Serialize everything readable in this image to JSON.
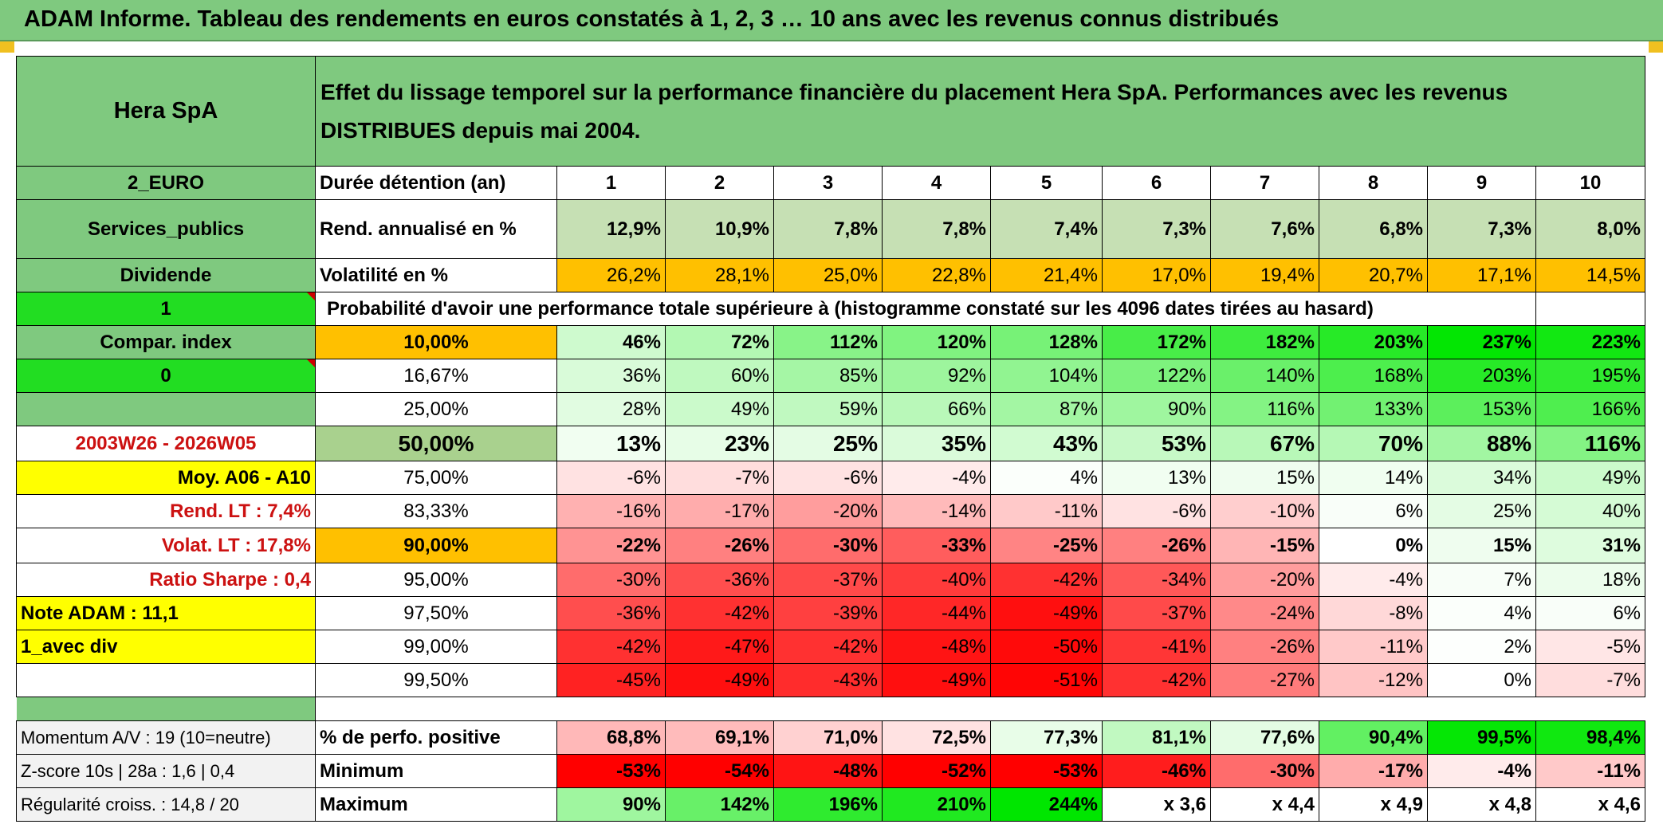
{
  "title": "ADAM Informe. Tableau des rendements en euros constatés à 1, 2, 3 … 10 ans avec les revenus connus distribués",
  "company": "Hera SpA",
  "description": "Effet du lissage temporel sur la performance financière du placement Hera SpA. Performances avec les revenus DISTRIBUES depuis mai 2004.",
  "left": {
    "currency": "2_EURO",
    "sector": "Services_publics",
    "dividend": "Dividende",
    "flag_one": "1",
    "compar_index": "Compar. index",
    "flag_zero": "0",
    "blank": "",
    "period": "2003W26 - 2026W05",
    "moy": "Moy. A06 - A10",
    "rend_lt": "Rend. LT :   7,4%",
    "volat_lt": "Volat. LT :   17,8%",
    "sharpe": "Ratio Sharpe :   0,4",
    "note": "Note ADAM : 11,1",
    "avec_div": "1_avec div",
    "momentum": "Momentum A/V : 19 (10=neutre)",
    "zscore": "Z-score 10s | 28a : 1,6 | 0,4",
    "regularite": "Régularité croiss. : 14,8 / 20"
  },
  "labels": {
    "duree": "Durée détention (an)",
    "rend": "Rend. annualisé en %",
    "volat": "Volatilité en %",
    "proba": "Probabilité d'avoir une performance totale supérieure à (histogramme constaté sur les 4096 dates tirées au hasard)",
    "perf_pos": "% de perfo. positive",
    "minimum": "Minimum",
    "maximum": "Maximum"
  },
  "years": [
    "1",
    "2",
    "3",
    "4",
    "5",
    "6",
    "7",
    "8",
    "9",
    "10"
  ],
  "rend": [
    "12,9%",
    "10,9%",
    "7,8%",
    "7,8%",
    "7,4%",
    "7,3%",
    "7,6%",
    "6,8%",
    "7,3%",
    "8,0%"
  ],
  "volat": [
    "26,2%",
    "28,1%",
    "25,0%",
    "22,8%",
    "21,4%",
    "17,0%",
    "19,4%",
    "20,7%",
    "17,1%",
    "14,5%"
  ],
  "quantiles": [
    {
      "label": "10,00%",
      "values": [
        "46%",
        "72%",
        "112%",
        "120%",
        "128%",
        "172%",
        "182%",
        "203%",
        "237%",
        "223%"
      ]
    },
    {
      "label": "16,67%",
      "values": [
        "36%",
        "60%",
        "85%",
        "92%",
        "104%",
        "122%",
        "140%",
        "168%",
        "203%",
        "195%"
      ]
    },
    {
      "label": "25,00%",
      "values": [
        "28%",
        "49%",
        "59%",
        "66%",
        "87%",
        "90%",
        "116%",
        "133%",
        "153%",
        "166%"
      ]
    },
    {
      "label": "50,00%",
      "values": [
        "13%",
        "23%",
        "25%",
        "35%",
        "43%",
        "53%",
        "67%",
        "70%",
        "88%",
        "116%"
      ]
    },
    {
      "label": "75,00%",
      "values": [
        "-6%",
        "-7%",
        "-6%",
        "-4%",
        "4%",
        "13%",
        "15%",
        "14%",
        "34%",
        "49%"
      ]
    },
    {
      "label": "83,33%",
      "values": [
        "-16%",
        "-17%",
        "-20%",
        "-14%",
        "-11%",
        "-6%",
        "-10%",
        "6%",
        "25%",
        "40%"
      ]
    },
    {
      "label": "90,00%",
      "values": [
        "-22%",
        "-26%",
        "-30%",
        "-33%",
        "-25%",
        "-26%",
        "-15%",
        "0%",
        "15%",
        "31%"
      ]
    },
    {
      "label": "95,00%",
      "values": [
        "-30%",
        "-36%",
        "-37%",
        "-40%",
        "-42%",
        "-34%",
        "-20%",
        "-4%",
        "7%",
        "18%"
      ]
    },
    {
      "label": "97,50%",
      "values": [
        "-36%",
        "-42%",
        "-39%",
        "-44%",
        "-49%",
        "-37%",
        "-24%",
        "-8%",
        "4%",
        "6%"
      ]
    },
    {
      "label": "99,00%",
      "values": [
        "-42%",
        "-47%",
        "-42%",
        "-48%",
        "-50%",
        "-41%",
        "-26%",
        "-11%",
        "2%",
        "-5%"
      ]
    },
    {
      "label": "99,50%",
      "values": [
        "-45%",
        "-49%",
        "-43%",
        "-49%",
        "-51%",
        "-42%",
        "-27%",
        "-12%",
        "0%",
        "-7%"
      ]
    }
  ],
  "perf_pos": [
    "68,8%",
    "69,1%",
    "71,0%",
    "72,5%",
    "77,3%",
    "81,1%",
    "77,6%",
    "90,4%",
    "99,5%",
    "98,4%"
  ],
  "minimum": [
    "-53%",
    "-54%",
    "-48%",
    "-52%",
    "-53%",
    "-46%",
    "-30%",
    "-17%",
    "-4%",
    "-11%"
  ],
  "maximum": [
    "90%",
    "142%",
    "196%",
    "210%",
    "244%",
    "x 3,6",
    "x 4,4",
    "x 4,9",
    "x 4,8",
    "x 4,6"
  ],
  "colors": {
    "header_green": "#7fc97f",
    "bright_green": "#22dd22",
    "yellow": "#ffff00",
    "orange": "#ffc000",
    "median_label": "#a9d18e",
    "red_text": "#cc1111"
  }
}
